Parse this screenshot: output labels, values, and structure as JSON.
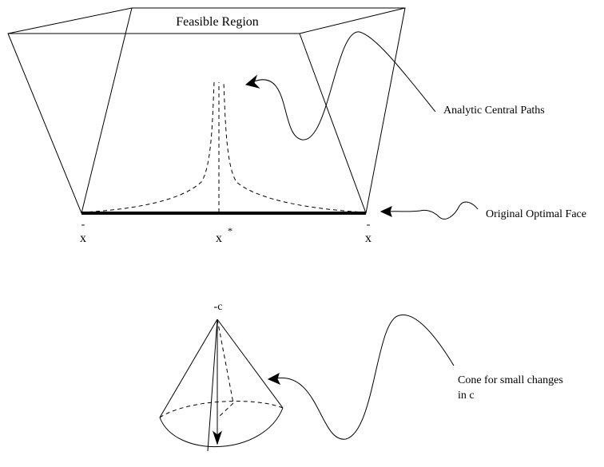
{
  "labels": {
    "feasible_region": "Feasible Region",
    "analytic_central_paths": "Analytic Central Paths",
    "original_optimal_face": "Original Optimal Face",
    "x_bar_left": "x",
    "x_star": "x",
    "x_star_superscript": "*",
    "x_bar_right": "x",
    "bar_mark": "-",
    "minus_c": "-c",
    "cone_line1": "Cone for small changes",
    "cone_line2": "in c"
  }
}
